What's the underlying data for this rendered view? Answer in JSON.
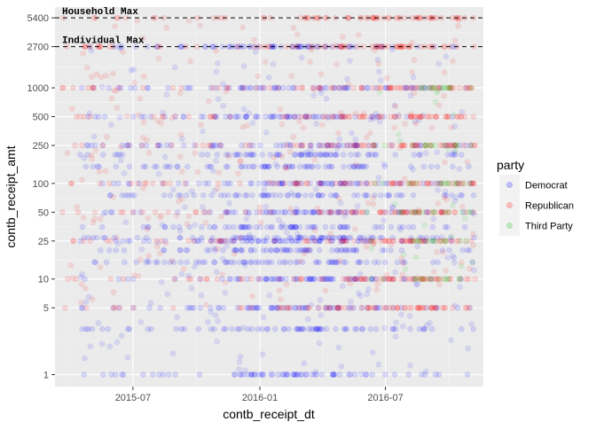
{
  "chart_data": {
    "type": "scatter",
    "xlabel": "contb_receipt_dt",
    "ylabel": "contb_receipt_amt",
    "x_scale": "date",
    "y_scale": "log10",
    "xlim": [
      "2015-03-10",
      "2016-11-20"
    ],
    "ylim": [
      0.75,
      7000
    ],
    "x_ticks": [
      {
        "value": "2015-07-01",
        "label": "2015-07"
      },
      {
        "value": "2016-01-01",
        "label": "2016-01"
      },
      {
        "value": "2016-07-01",
        "label": "2016-07"
      }
    ],
    "y_ticks": [
      1,
      5,
      10,
      25,
      50,
      100,
      250,
      500,
      1000,
      2700,
      5400
    ],
    "reference_lines": [
      {
        "y": 5400,
        "label": "Household Max",
        "style": "dashed"
      },
      {
        "y": 2700,
        "label": "Individual Max",
        "style": "dashed"
      }
    ],
    "legend": {
      "title": "party",
      "position": "right",
      "entries": [
        {
          "label": "Democrat",
          "color": "#0000ff"
        },
        {
          "label": "Republican",
          "color": "#ff0000"
        },
        {
          "label": "Third Party",
          "color": "#00c000"
        }
      ]
    },
    "grid": true,
    "background": "#ebebeb",
    "point_alpha": 0.12,
    "series": [
      {
        "name": "Democrat",
        "color": "#0000ff",
        "x_range": [
          "2015-04-15",
          "2016-11-08"
        ],
        "density_peak": "2016-03-01",
        "common_amounts": [
          1,
          3,
          5,
          10,
          15,
          20,
          25,
          27,
          35,
          50,
          75,
          100,
          150,
          200,
          250,
          500,
          1000,
          2700
        ],
        "typical_range": [
          1,
          2700
        ]
      },
      {
        "name": "Republican",
        "color": "#ff0000",
        "x_range": [
          "2015-03-20",
          "2016-11-08"
        ],
        "density_peak": "2016-07-15",
        "common_amounts": [
          5,
          10,
          25,
          50,
          100,
          250,
          500,
          1000,
          2700,
          5400
        ],
        "typical_range": [
          5,
          5400
        ]
      },
      {
        "name": "Third Party",
        "color": "#00c000",
        "x_range": [
          "2016-06-01",
          "2016-11-08"
        ],
        "density_peak": "2016-09-15",
        "common_amounts": [
          10,
          25,
          50,
          100,
          250,
          1000
        ],
        "typical_range": [
          10,
          1000
        ]
      }
    ]
  }
}
